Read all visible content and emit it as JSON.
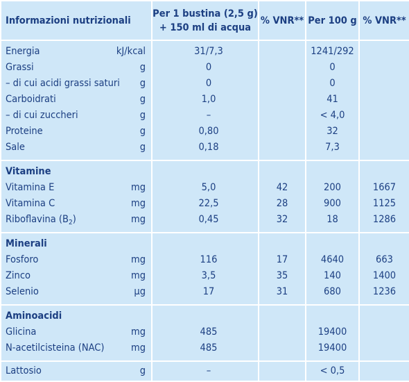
{
  "header": {
    "col_name": "Informazioni nutrizionali",
    "col_portion_line1": "Per 1 bustina (2,5 g)",
    "col_portion_line2": "+ 150 ml di acqua",
    "col_vnr1": "% VNR**",
    "col_per100": "Per 100 g",
    "col_vnr2": "% VNR**"
  },
  "general": [
    {
      "name": "Energia",
      "unit": "kJ/kcal",
      "portion": "31/7,3",
      "vnr1": "",
      "per100": "1241/292",
      "vnr2": ""
    },
    {
      "name": "Grassi",
      "unit": "g",
      "portion": "0",
      "vnr1": "",
      "per100": "0",
      "vnr2": ""
    },
    {
      "name": "– di cui acidi grassi saturi",
      "unit": "g",
      "portion": "0",
      "vnr1": "",
      "per100": "0",
      "vnr2": ""
    },
    {
      "name": "Carboidrati",
      "unit": "g",
      "portion": "1,0",
      "vnr1": "",
      "per100": "41",
      "vnr2": ""
    },
    {
      "name": "– di cui zuccheri",
      "unit": "g",
      "portion": "–",
      "vnr1": "",
      "per100": "< 4,0",
      "vnr2": ""
    },
    {
      "name": "Proteine",
      "unit": "g",
      "portion": "0,80",
      "vnr1": "",
      "per100": "32",
      "vnr2": ""
    },
    {
      "name": "Sale",
      "unit": "g",
      "portion": "0,18",
      "vnr1": "",
      "per100": "7,3",
      "vnr2": ""
    }
  ],
  "vitamins": {
    "title": "Vitamine",
    "rows": [
      {
        "name": "Vitamina E",
        "unit": "mg",
        "portion": "5,0",
        "vnr1": "42",
        "per100": "200",
        "vnr2": "1667"
      },
      {
        "name": "Vitamina C",
        "unit": "mg",
        "portion": "22,5",
        "vnr1": "28",
        "per100": "900",
        "vnr2": "1125"
      },
      {
        "name": "Riboflavina (B",
        "name_sub": "2",
        "name_after": ")",
        "unit": "mg",
        "portion": "0,45",
        "vnr1": "32",
        "per100": "18",
        "vnr2": "1286"
      }
    ]
  },
  "minerals": {
    "title": "Minerali",
    "rows": [
      {
        "name": "Fosforo",
        "unit": "mg",
        "portion": "116",
        "vnr1": "17",
        "per100": "4640",
        "vnr2": "663"
      },
      {
        "name": "Zinco",
        "unit": "mg",
        "portion": "3,5",
        "vnr1": "35",
        "per100": "140",
        "vnr2": "1400"
      },
      {
        "name": "Selenio",
        "unit": "µg",
        "portion": "17",
        "vnr1": "31",
        "per100": "680",
        "vnr2": "1236"
      }
    ]
  },
  "aminoacids": {
    "title": "Aminoacidi",
    "rows": [
      {
        "name": "Glicina",
        "unit": "mg",
        "portion": "485",
        "vnr1": "",
        "per100": "19400",
        "vnr2": ""
      },
      {
        "name": "N-acetilcisteina (NAC)",
        "unit": "mg",
        "portion": "485",
        "vnr1": "",
        "per100": "19400",
        "vnr2": ""
      }
    ]
  },
  "lactose": {
    "name": "Lattosio",
    "unit": "g",
    "portion": "–",
    "vnr1": "",
    "per100": "< 0,5",
    "vnr2": ""
  }
}
